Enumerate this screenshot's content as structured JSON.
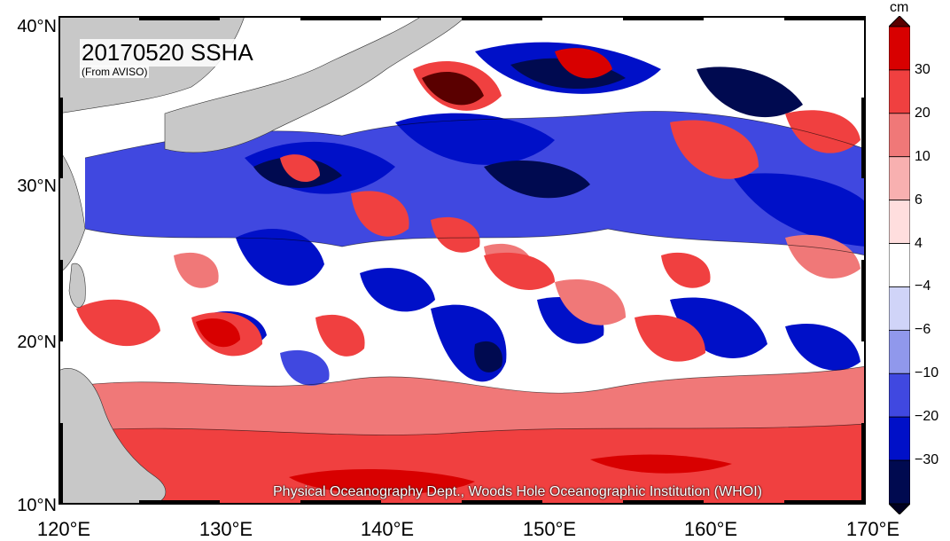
{
  "map": {
    "title": "20170520 SSHA",
    "subtitle": "(From AVISO)",
    "credit": "Physical Oceanography Dept., Woods Hole Oceanographic Institution (WHOI)",
    "lon_labels": [
      "120°E",
      "130°E",
      "140°E",
      "150°E",
      "160°E",
      "170°E"
    ],
    "lat_labels": [
      "40°N",
      "30°N",
      "20°N",
      "10°N"
    ],
    "lon_range": [
      120,
      170
    ],
    "lat_range": [
      10,
      40
    ]
  },
  "colorbar": {
    "unit": "cm",
    "labels": [
      "30",
      "20",
      "10",
      "6",
      "4",
      "−4",
      "−6",
      "−10",
      "−20",
      "−30"
    ],
    "levels": [
      30,
      20,
      10,
      6,
      4,
      -4,
      -6,
      -10,
      -20,
      -30
    ],
    "colors": [
      "#5a0000",
      "#d80000",
      "#f04040",
      "#f07878",
      "#f8b0b0",
      "#ffdede",
      "#ffffff",
      "#d0d4f8",
      "#9098ec",
      "#4048e0",
      "#0010c8",
      "#000a50",
      "#000020"
    ]
  },
  "colors": {
    "land": "#c8c8c8",
    "background": "#ffffff"
  }
}
